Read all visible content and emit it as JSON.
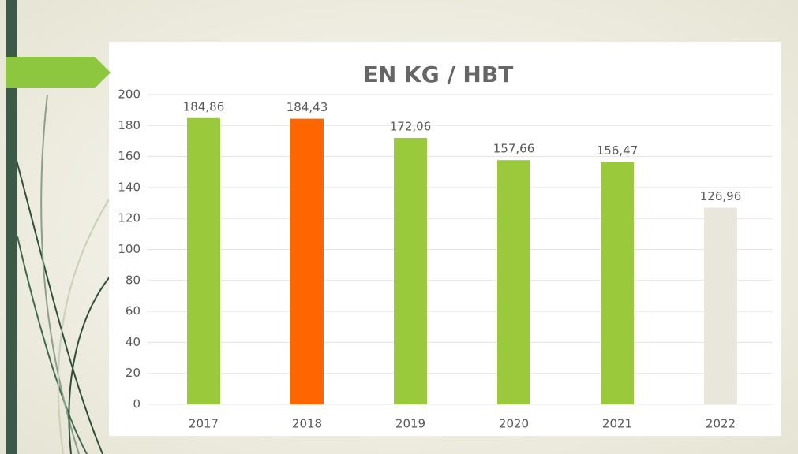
{
  "chart_data": {
    "type": "bar",
    "title": "EN KG / HBT",
    "categories": [
      "2017",
      "2018",
      "2019",
      "2020",
      "2021",
      "2022"
    ],
    "values": [
      184.86,
      184.43,
      172.06,
      157.66,
      156.47,
      126.96
    ],
    "value_labels": [
      "184,86",
      "184,43",
      "172,06",
      "157,66",
      "156,47",
      "126,96"
    ],
    "colors": [
      "#9ac93b",
      "#ff6600",
      "#9ac93b",
      "#9ac93b",
      "#9ac93b",
      "#e9e6dc"
    ],
    "ylim": [
      0,
      200
    ],
    "yticks": [
      0,
      20,
      40,
      60,
      80,
      100,
      120,
      140,
      160,
      180,
      200
    ],
    "grid": true
  }
}
